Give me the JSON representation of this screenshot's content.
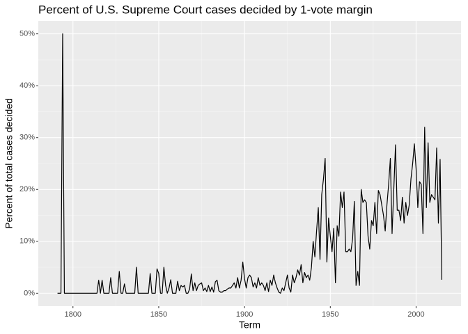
{
  "chart_data": {
    "type": "line",
    "title": "Percent of U.S. Supreme Court cases decided by 1-vote margin",
    "x_label": "Term",
    "y_label": "Percent of total cases decided",
    "x": [
      1791,
      1792,
      1793,
      1794,
      1795,
      1796,
      1797,
      1798,
      1799,
      1800,
      1801,
      1802,
      1803,
      1804,
      1805,
      1806,
      1807,
      1808,
      1809,
      1810,
      1811,
      1812,
      1813,
      1814,
      1815,
      1816,
      1817,
      1818,
      1819,
      1820,
      1821,
      1822,
      1823,
      1824,
      1825,
      1826,
      1827,
      1828,
      1829,
      1830,
      1831,
      1832,
      1833,
      1834,
      1835,
      1836,
      1837,
      1838,
      1839,
      1840,
      1841,
      1842,
      1843,
      1844,
      1845,
      1846,
      1847,
      1848,
      1849,
      1850,
      1851,
      1852,
      1853,
      1854,
      1855,
      1856,
      1857,
      1858,
      1859,
      1860,
      1861,
      1862,
      1863,
      1864,
      1865,
      1866,
      1867,
      1868,
      1869,
      1870,
      1871,
      1872,
      1873,
      1874,
      1875,
      1876,
      1877,
      1878,
      1879,
      1880,
      1881,
      1882,
      1883,
      1884,
      1885,
      1886,
      1887,
      1888,
      1889,
      1890,
      1891,
      1892,
      1893,
      1894,
      1895,
      1896,
      1897,
      1898,
      1899,
      1900,
      1901,
      1902,
      1903,
      1904,
      1905,
      1906,
      1907,
      1908,
      1909,
      1910,
      1911,
      1912,
      1913,
      1914,
      1915,
      1916,
      1917,
      1918,
      1919,
      1920,
      1921,
      1922,
      1923,
      1924,
      1925,
      1926,
      1927,
      1928,
      1929,
      1930,
      1931,
      1932,
      1933,
      1934,
      1935,
      1936,
      1937,
      1938,
      1939,
      1940,
      1941,
      1942,
      1943,
      1944,
      1945,
      1946,
      1947,
      1948,
      1949,
      1950,
      1951,
      1952,
      1953,
      1954,
      1955,
      1956,
      1957,
      1958,
      1959,
      1960,
      1961,
      1962,
      1963,
      1964,
      1965,
      1966,
      1967,
      1968,
      1969,
      1970,
      1971,
      1972,
      1973,
      1974,
      1975,
      1976,
      1977,
      1978,
      1979,
      1980,
      1981,
      1982,
      1983,
      1984,
      1985,
      1986,
      1987,
      1988,
      1989,
      1990,
      1991,
      1992,
      1993,
      1994,
      1995,
      1996,
      1997,
      1998,
      1999,
      2000,
      2001,
      2002,
      2003,
      2004,
      2005,
      2006,
      2007,
      2008,
      2009,
      2010,
      2011,
      2012,
      2013,
      2014,
      2015
    ],
    "values": [
      0,
      0,
      0,
      50,
      0,
      0,
      0,
      0,
      0,
      0,
      0,
      0,
      0,
      0,
      0,
      0,
      0,
      0,
      0,
      0,
      0,
      0,
      0,
      0,
      2.5,
      0,
      2.5,
      0,
      0,
      0,
      0,
      3,
      0,
      0,
      0,
      0,
      4.2,
      0,
      0,
      1.8,
      0,
      0,
      0,
      0,
      0,
      0,
      5,
      0,
      0,
      0,
      0,
      0,
      0,
      0,
      3.8,
      0,
      0,
      0,
      4.7,
      3.8,
      0,
      0,
      5,
      1.5,
      0,
      1,
      2.6,
      0,
      0,
      0,
      2.3,
      0.5,
      1.5,
      1.2,
      1.5,
      0,
      0,
      0.8,
      3.7,
      0.5,
      2,
      0.5,
      1.5,
      1.8,
      2,
      0.5,
      1,
      0.3,
      1.5,
      0.3,
      1.2,
      0.2,
      2.2,
      2.5,
      0.5,
      0.2,
      0.2,
      0.5,
      0.5,
      0.8,
      1,
      1,
      1.5,
      2,
      1,
      3,
      1,
      2.5,
      6,
      2.8,
      1,
      3,
      3.5,
      3,
      1.2,
      2,
      1,
      3,
      1.5,
      2,
      1.5,
      0.5,
      2,
      0.3,
      2.5,
      1.5,
      3.5,
      2,
      1,
      0.2,
      0,
      1,
      0.5,
      2,
      3.5,
      1,
      0.2,
      3.5,
      2,
      3,
      4.5,
      3.5,
      5.5,
      2,
      4,
      3,
      3.5,
      2.5,
      5,
      10,
      7,
      12,
      16.5,
      6.5,
      19,
      22,
      26,
      6,
      14.5,
      11,
      8,
      12.5,
      2,
      13,
      11,
      19.5,
      16.5,
      19.5,
      8,
      8,
      8.5,
      8,
      10.5,
      17.7,
      1.5,
      4.2,
      1.5,
      20,
      17.5,
      18,
      17.5,
      11,
      8.5,
      14,
      13,
      17.5,
      11.5,
      19.8,
      19,
      17,
      15,
      12,
      17,
      21,
      26,
      11.5,
      20,
      28.6,
      16,
      16,
      14,
      18.5,
      13.5,
      17.5,
      15,
      17,
      22,
      25,
      28.8,
      24,
      16.5,
      21.5,
      21,
      11.5,
      32,
      16.5,
      29,
      17.5,
      19,
      18.5,
      18,
      28,
      13.5,
      25.8,
      2.6
    ],
    "color": "#000000",
    "xlim": [
      1779.8,
      2026.2
    ],
    "xticks": [
      1800,
      1850,
      1900,
      1950,
      2000
    ],
    "ylim": [
      -2.5,
      52.5
    ],
    "yticks": [
      {
        "value": 0,
        "label": "0%"
      },
      {
        "value": 10,
        "label": "10%"
      },
      {
        "value": 20,
        "label": "20%"
      },
      {
        "value": 30,
        "label": "30%"
      },
      {
        "value": 40,
        "label": "40%"
      },
      {
        "value": 50,
        "label": "50%"
      }
    ],
    "grid": true
  }
}
